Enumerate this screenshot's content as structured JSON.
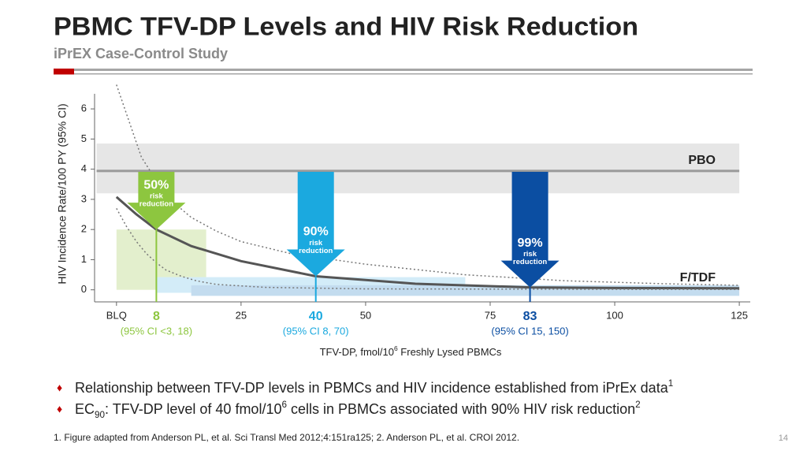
{
  "title": "PBMC TFV-DP Levels and HIV Risk Reduction",
  "subtitle": "iPrEX Case-Control Study",
  "chart_data": {
    "type": "line",
    "y_label": "HIV Incidence Rate/100 PY (95% CI)",
    "x_label": [
      {
        "text": "TFV-DP, fmol/10"
      },
      {
        "text": "6",
        "style": "sup"
      },
      {
        "text": " Freshly Lysed PBMCs"
      }
    ],
    "xlim": [
      -4.4,
      127.2
    ],
    "ylim": [
      -0.4,
      6.5
    ],
    "xticks": [
      {
        "value": 0,
        "label": "BLQ"
      },
      25,
      50,
      75,
      100,
      125
    ],
    "yticks": [
      0,
      1,
      2,
      3,
      4,
      5,
      6
    ],
    "regions": [
      {
        "x": [
          -4,
          125
        ],
        "y": [
          3.2,
          4.85
        ],
        "color": "#e6e6e6"
      },
      {
        "x": [
          0,
          18
        ],
        "y": [
          0,
          2
        ],
        "color": "#e3efcd"
      },
      {
        "x": [
          8,
          70
        ],
        "y": [
          -0.1,
          0.42
        ],
        "color": "#d3ecf8"
      },
      {
        "x": [
          15,
          125
        ],
        "y": [
          -0.2,
          0.15
        ],
        "color": "#c3dcef"
      }
    ],
    "series": [
      {
        "name": "PBO",
        "color": "#9a9a9a",
        "width": 3,
        "x": [
          -4,
          125
        ],
        "values": [
          3.94,
          3.94
        ]
      },
      {
        "name": "F/TDF",
        "color": "#555555",
        "width": 3,
        "x": [
          0,
          4,
          8,
          15,
          25,
          40,
          60,
          83,
          100,
          125
        ],
        "values": [
          3.08,
          2.5,
          2.0,
          1.45,
          0.95,
          0.45,
          0.2,
          0.08,
          0.06,
          0.05
        ]
      },
      {
        "color": "#777777",
        "width": 1.5,
        "dash": true,
        "x": [
          0,
          5,
          10,
          15,
          20,
          25,
          35,
          50,
          70,
          90,
          110,
          125
        ],
        "values": [
          6.8,
          4.4,
          3.1,
          2.4,
          1.95,
          1.6,
          1.2,
          0.85,
          0.5,
          0.3,
          0.2,
          0.15
        ]
      },
      {
        "color": "#777777",
        "width": 1.5,
        "dash": true,
        "x": [
          0,
          2,
          4,
          6,
          8,
          10,
          13,
          16,
          20,
          30,
          50,
          125
        ],
        "values": [
          2.7,
          2.1,
          1.6,
          1.2,
          0.9,
          0.65,
          0.45,
          0.3,
          0.18,
          0.08,
          0.03,
          0.01
        ]
      }
    ],
    "annotations": [
      {
        "x": 8,
        "value": 50,
        "value_label": "50%",
        "text": [
          "risk",
          "reduction"
        ],
        "color": "#8dc63f"
      },
      {
        "x": 40,
        "value": 90,
        "value_label": "90%",
        "text": [
          "risk",
          "reduction"
        ],
        "color": "#1ba9df"
      },
      {
        "x": 83,
        "value": 99,
        "value_label": "99%",
        "text": [
          "risk",
          "reduction"
        ],
        "color": "#0b4ea2"
      }
    ],
    "markers": [
      {
        "x": 8,
        "ci": "(95% CI <3, 18)",
        "color": "#8dc63f"
      },
      {
        "x": 40,
        "ci": "(95% CI 8, 70)",
        "color": "#1ba9df"
      },
      {
        "x": 83,
        "ci": "(95% CI 15, 150)",
        "color": "#0b4ea2"
      }
    ]
  },
  "bullets": [
    [
      {
        "text": "Relationship between TFV-DP levels in PBMCs and HIV incidence established from iPrEx data"
      },
      {
        "text": "1",
        "style": "sup"
      }
    ],
    [
      {
        "text": "EC"
      },
      {
        "text": "90",
        "style": "sub"
      },
      {
        "text": ": TFV-DP level of 40 fmol/10"
      },
      {
        "text": "6",
        "style": "sup"
      },
      {
        "text": " cells in PBMCs associated with 90% HIV risk reduction"
      },
      {
        "text": "2",
        "style": "sup"
      }
    ]
  ],
  "footnote": "1. Figure adapted from Anderson PL, et al. Sci Transl Med 2012;4:151ra125; 2. Anderson PL, et al. CROI 2012.",
  "page_number": 14
}
